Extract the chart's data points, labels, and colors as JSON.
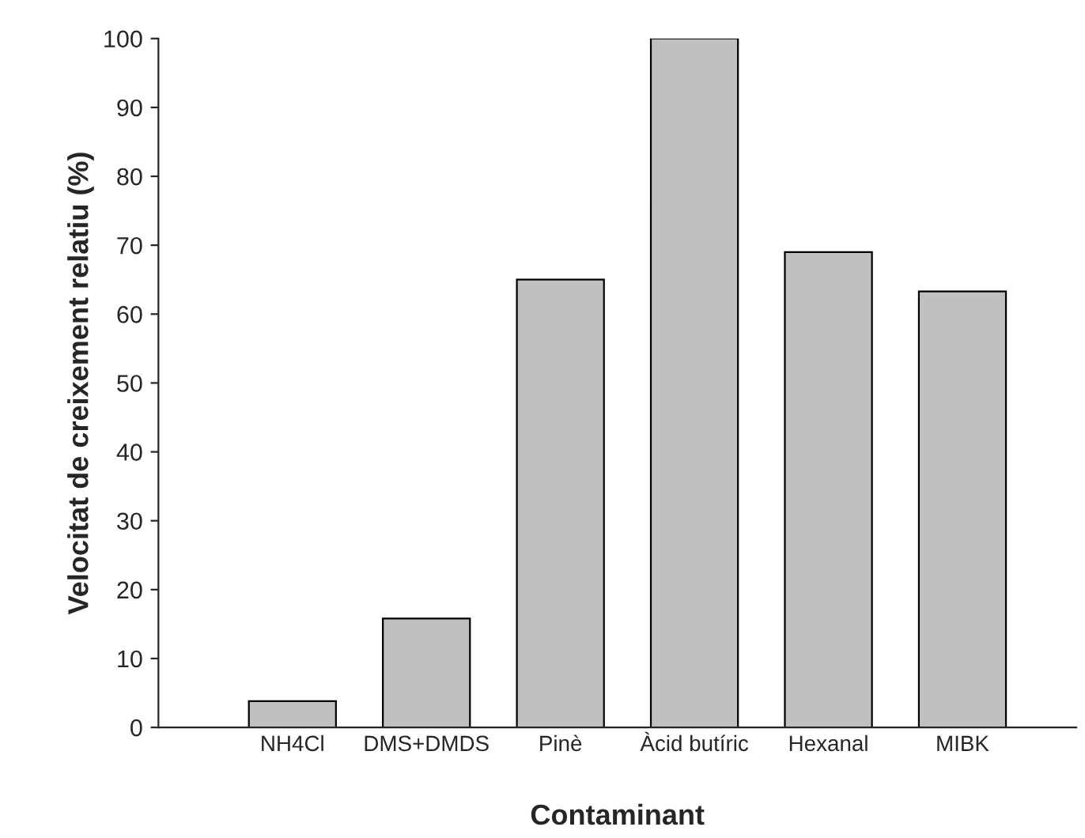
{
  "chart_data": {
    "type": "bar",
    "xlabel": "Contaminant",
    "ylabel": "Velocitat de creixement relatiu (%)",
    "categories": [
      "NH4Cl",
      "DMS+DMDS",
      "Pinè",
      "Àcid butíric",
      "Hexanal",
      "MIBK"
    ],
    "values": [
      3.8,
      15.8,
      65,
      100,
      69,
      63.3
    ],
    "color": "#c0c0c0",
    "ylim": [
      0,
      100
    ],
    "yticks": [
      0,
      10,
      20,
      30,
      40,
      50,
      60,
      70,
      80,
      90,
      100
    ],
    "grid": false,
    "legend": false
  }
}
